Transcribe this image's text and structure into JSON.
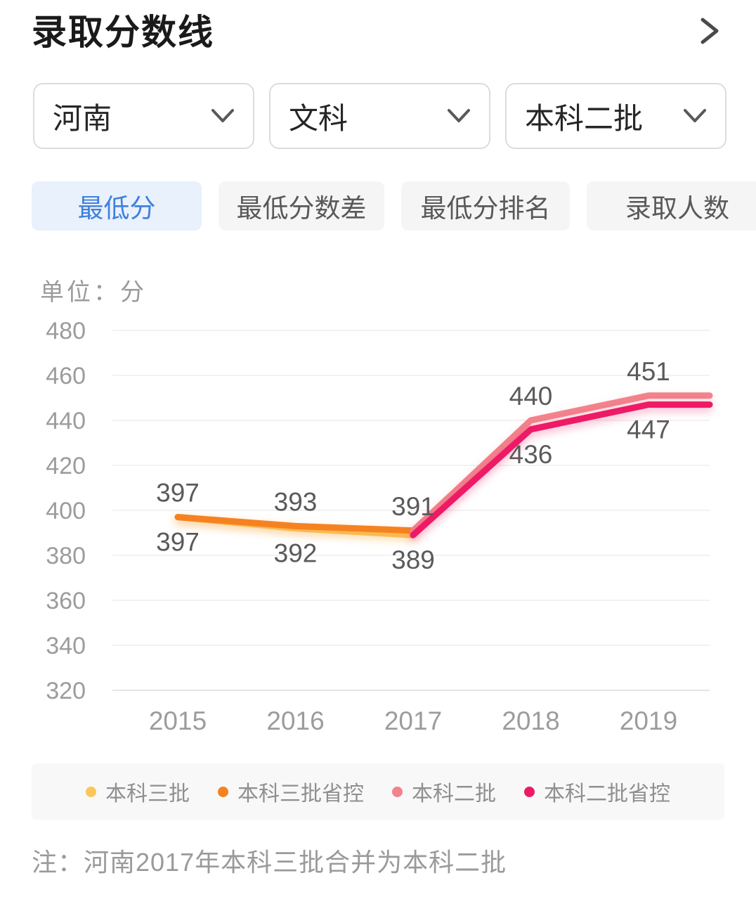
{
  "header": {
    "title": "录取分数线",
    "chevron_icon": "chevron-right-icon"
  },
  "filters": [
    {
      "value": "河南"
    },
    {
      "value": "文科"
    },
    {
      "value": "本科二批"
    }
  ],
  "tabs": [
    {
      "label": "最低分",
      "active": true
    },
    {
      "label": "最低分数差",
      "active": false
    },
    {
      "label": "最低分排名",
      "active": false
    },
    {
      "label": "录取人数",
      "active": false
    }
  ],
  "colors": {
    "active_tab_bg": "#e8f1fc",
    "active_tab_text": "#4080dd",
    "inactive_tab_bg": "#f5f5f5",
    "axis_text": "#9c9c9c",
    "data_label_text": "#5a5a5a"
  },
  "chart_data": {
    "type": "line",
    "unit_label": "单位：分",
    "categories": [
      "2015",
      "2016",
      "2017",
      "2018",
      "2019"
    ],
    "xlabel": "",
    "ylabel": "分",
    "ylim": [
      320,
      480
    ],
    "y_ticks": [
      320,
      340,
      360,
      380,
      400,
      420,
      440,
      460,
      480
    ],
    "grid": true,
    "legend_position": "bottom",
    "series": [
      {
        "name": "本科三批",
        "color": "#fbc65b",
        "years": [
          2015,
          2016,
          2017
        ],
        "values": [
          397,
          392,
          389
        ],
        "labels": [
          397,
          392,
          389
        ],
        "label_position": "bottom",
        "extend_right": false
      },
      {
        "name": "本科三批省控",
        "color": "#f58220",
        "years": [
          2015,
          2016,
          2017
        ],
        "values": [
          397,
          393,
          391
        ],
        "labels": [
          397,
          393,
          391
        ],
        "label_position": "top",
        "extend_right": false
      },
      {
        "name": "本科二批",
        "color": "#f2828c",
        "years": [
          2017,
          2018,
          2019
        ],
        "values": [
          391,
          440,
          451
        ],
        "labels": [
          null,
          440,
          451
        ],
        "label_position": "top",
        "extend_right": true
      },
      {
        "name": "本科二批省控",
        "color": "#ee1a66",
        "years": [
          2017,
          2018,
          2019
        ],
        "values": [
          389,
          436,
          447
        ],
        "labels": [
          null,
          436,
          447
        ],
        "label_position": "bottom",
        "extend_right": true
      }
    ],
    "note": "注：河南2017年本科三批合并为本科二批"
  }
}
